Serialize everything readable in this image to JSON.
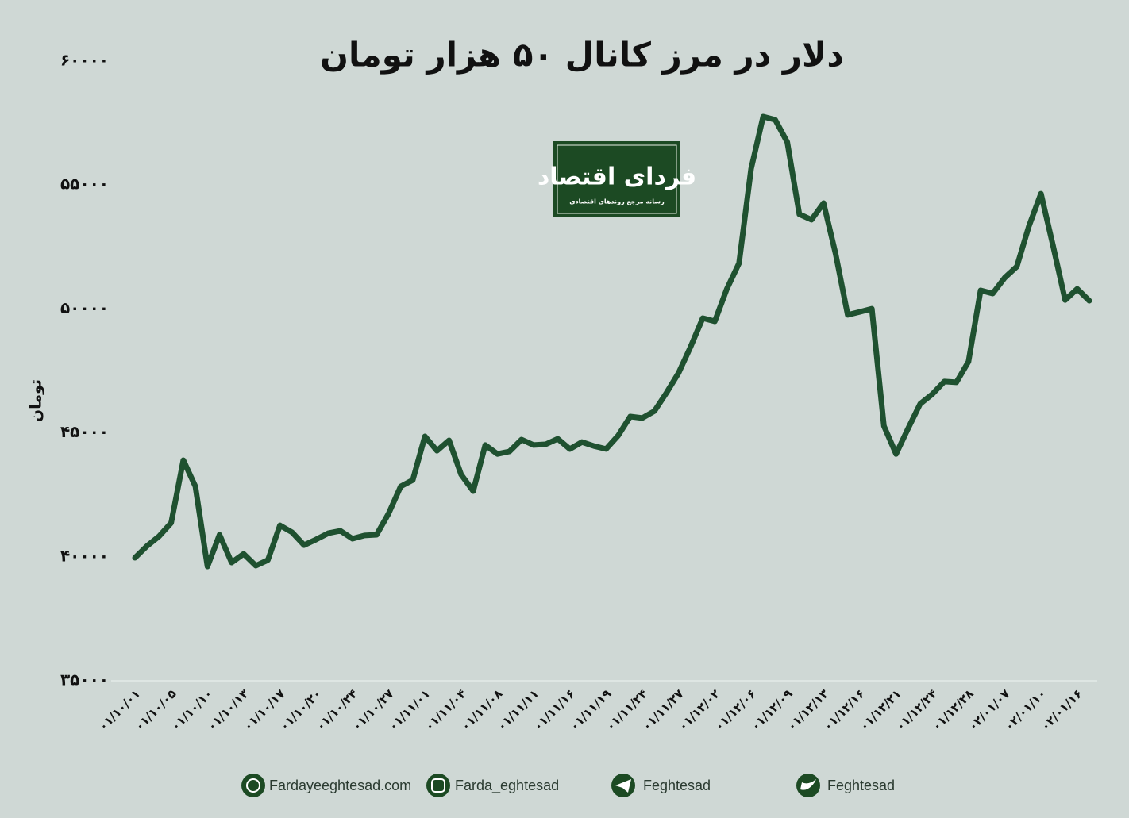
{
  "chart_data": {
    "type": "line",
    "title": "دلار در مرز کانال ۵۰ هزار تومان",
    "y_label": "تومان",
    "color": "#1f5130",
    "categories": [
      "۰۱/۱۰/۰۱",
      null,
      null,
      "۰۱/۱۰/۰۵",
      null,
      null,
      "۰۱/۱۰/۱۰",
      null,
      null,
      "۰۱/۱۰/۱۳",
      null,
      null,
      "۰۱/۱۰/۱۷",
      null,
      null,
      "۰۱/۱۰/۲۰",
      null,
      null,
      "۰۱/۱۰/۲۴",
      null,
      null,
      "۰۱/۱۰/۲۷",
      null,
      null,
      "۰۱/۱۱/۰۱",
      null,
      null,
      "۰۱/۱۱/۰۴",
      null,
      null,
      "۰۱/۱۱/۰۸",
      null,
      null,
      "۰۱/۱۱/۱۱",
      null,
      null,
      "۰۱/۱۱/۱۶",
      null,
      null,
      "۰۱/۱۱/۱۹",
      null,
      null,
      "۰۱/۱۱/۲۴",
      null,
      null,
      "۰۱/۱۱/۲۷",
      null,
      null,
      "۰۱/۱۲/۰۲",
      null,
      null,
      "۰۱/۱۲/۰۶",
      null,
      null,
      "۰۱/۱۲/۰۹",
      null,
      null,
      "۰۱/۱۲/۱۳",
      null,
      null,
      "۰۱/۱۲/۱۶",
      null,
      null,
      "۰۱/۱۲/۲۱",
      null,
      null,
      "۰۱/۱۲/۲۴",
      null,
      null,
      "۰۱/۱۲/۲۸",
      null,
      null,
      "۰۲/۰۱/۰۷",
      null,
      null,
      "۰۲/۰۱/۱۰",
      null,
      null,
      "۰۲/۰۱/۱۶",
      null
    ],
    "values": [
      39960,
      40440,
      40830,
      41370,
      43900,
      42840,
      39610,
      40890,
      39770,
      40120,
      39640,
      39870,
      41270,
      40990,
      40470,
      40700,
      40950,
      41050,
      40730,
      40860,
      40890,
      41750,
      42840,
      43100,
      44860,
      44280,
      44700,
      43320,
      42650,
      44510,
      44150,
      44250,
      44730,
      44510,
      44540,
      44760,
      44350,
      44630,
      44470,
      44350,
      44890,
      45660,
      45600,
      45880,
      46620,
      47420,
      48480,
      49630,
      49500,
      50810,
      51840,
      55650,
      57760,
      57630,
      56730,
      53820,
      53600,
      54270,
      52220,
      49760,
      49880,
      50010,
      45280,
      44150,
      45180,
      46170,
      46560,
      47070,
      47040,
      47870,
      50750,
      50620,
      51260,
      51710,
      53340,
      54650,
      52540,
      50360,
      50810,
      50330
    ],
    "ylim": [
      35000,
      60000
    ],
    "yticks": [
      {
        "value": 35000,
        "label": "۳۵۰۰۰"
      },
      {
        "value": 40000,
        "label": "۴۰۰۰۰"
      },
      {
        "value": 45000,
        "label": "۴۵۰۰۰"
      },
      {
        "value": 50000,
        "label": "۵۰۰۰۰"
      },
      {
        "value": 55000,
        "label": "۵۵۰۰۰"
      },
      {
        "value": 60000,
        "label": "۶۰۰۰۰"
      }
    ],
    "grid": false
  },
  "logo": {
    "title": "فردای اقتصاد",
    "subtitle": "رسانه مرجع روندهای اقتصادی"
  },
  "footer": {
    "links": [
      "Fardayeeghtesad.com",
      "Farda_eghtesad",
      "Feghtesad",
      "Feghtesad"
    ]
  }
}
